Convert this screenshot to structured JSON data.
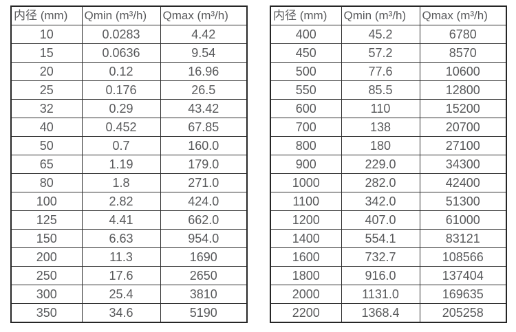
{
  "table_left": {
    "headers": [
      "内径 (mm)",
      "Qmin (m³/h)",
      "Qmax (m³/h)"
    ],
    "rows": [
      [
        "10",
        "0.0283",
        "4.42"
      ],
      [
        "15",
        "0.0636",
        "9.54"
      ],
      [
        "20",
        "0.12",
        "16.96"
      ],
      [
        "25",
        "0.176",
        "26.5"
      ],
      [
        "32",
        "0.29",
        "43.42"
      ],
      [
        "40",
        "0.452",
        "67.85"
      ],
      [
        "50",
        "0.7",
        "160.0"
      ],
      [
        "65",
        "1.19",
        "179.0"
      ],
      [
        "80",
        "1.8",
        "271.0"
      ],
      [
        "100",
        "2.82",
        "424.0"
      ],
      [
        "125",
        "4.41",
        "662.0"
      ],
      [
        "150",
        "6.63",
        "954.0"
      ],
      [
        "200",
        "11.3",
        "1690"
      ],
      [
        "250",
        "17.6",
        "2650"
      ],
      [
        "300",
        "25.4",
        "3810"
      ],
      [
        "350",
        "34.6",
        "5190"
      ]
    ]
  },
  "table_right": {
    "headers": [
      "内径 (mm)",
      "Qmin (m³/h)",
      "Qmax (m³/h)"
    ],
    "rows": [
      [
        "400",
        "45.2",
        "6780"
      ],
      [
        "450",
        "57.2",
        "8570"
      ],
      [
        "500",
        "77.6",
        "10600"
      ],
      [
        "550",
        "85.5",
        "12800"
      ],
      [
        "600",
        "110",
        "15200"
      ],
      [
        "700",
        "138",
        "20700"
      ],
      [
        "800",
        "180",
        "27100"
      ],
      [
        "900",
        "229.0",
        "34300"
      ],
      [
        "1000",
        "282.0",
        "42400"
      ],
      [
        "1100",
        "342.0",
        "51300"
      ],
      [
        "1200",
        "407.0",
        "61000"
      ],
      [
        "1400",
        "554.1",
        "83121"
      ],
      [
        "1600",
        "732.7",
        "108566"
      ],
      [
        "1800",
        "916.0",
        "137404"
      ],
      [
        "2000",
        "1131.0",
        "169635"
      ],
      [
        "2200",
        "1368.4",
        "205258"
      ]
    ]
  }
}
